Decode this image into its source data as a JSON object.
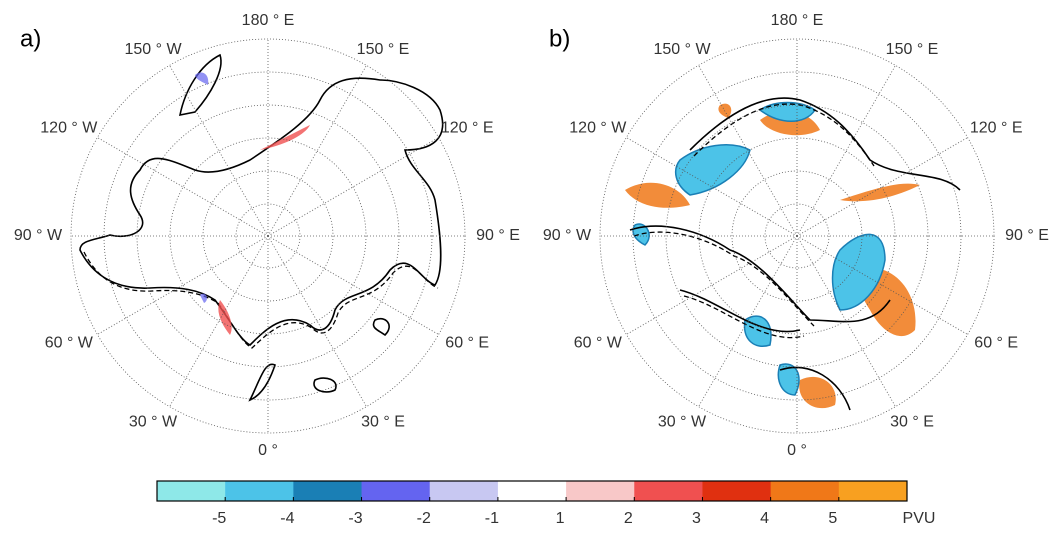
{
  "panels": [
    {
      "label": "a)",
      "lon_labels": [
        "0 °",
        "30 ° E",
        "60 ° E",
        "90 ° E",
        "120 ° E",
        "150 ° E",
        "180 ° E",
        "150 ° W",
        "120 ° W",
        "90 ° W",
        "60 ° W",
        "30 ° W"
      ]
    },
    {
      "label": "b)",
      "lon_labels": [
        "0 °",
        "30 ° E",
        "60 ° E",
        "90 ° E",
        "120 ° E",
        "150 ° E",
        "180 ° E",
        "150 ° W",
        "120 ° W",
        "90 ° W",
        "60 ° W",
        "30 ° W"
      ]
    }
  ],
  "colorbar": {
    "colors": [
      "#8ee8e8",
      "#4cc3e8",
      "#1a7fb5",
      "#6464f0",
      "#c8c8f2",
      "#ffffff",
      "#f8c8c8",
      "#f05050",
      "#e03010",
      "#f07818",
      "#f8a020"
    ],
    "ticks": [
      -5,
      -4,
      -3,
      -2,
      -1,
      1,
      2,
      3,
      4,
      5
    ],
    "unit": "PVU"
  }
}
